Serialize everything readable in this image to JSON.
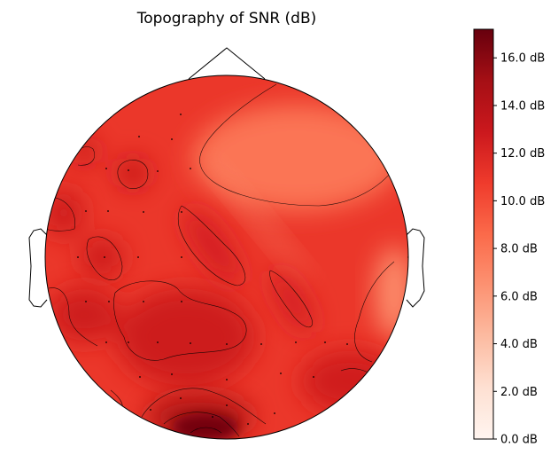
{
  "chart_data": {
    "type": "heatmap",
    "subtype": "eeg-topomap",
    "title": "Topography of SNR (dB)",
    "colormap": "Reds",
    "colorbar": {
      "min": 0.0,
      "max": 17.2,
      "ticks": [
        {
          "value": 0,
          "label": "0.0 dB"
        },
        {
          "value": 2,
          "label": "2.0 dB"
        },
        {
          "value": 4,
          "label": "4.0 dB"
        },
        {
          "value": 6,
          "label": "6.0 dB"
        },
        {
          "value": 8,
          "label": "8.0 dB"
        },
        {
          "value": 10,
          "label": "10.0 dB"
        },
        {
          "value": 12,
          "label": "12.0 dB"
        },
        {
          "value": 14,
          "label": "14.0 dB"
        },
        {
          "value": 16,
          "label": "16.0 dB"
        }
      ]
    },
    "contour_interval": 2,
    "base_level": 11.0,
    "regions": [
      {
        "name": "frontal-right-low",
        "value": 8.0
      },
      {
        "name": "temporal-right-low",
        "value": 6.8
      },
      {
        "name": "occipital-peak",
        "value": 16.8
      },
      {
        "name": "occipital-high",
        "value": 14.3
      },
      {
        "name": "frontal-left-high",
        "value": 13.2
      },
      {
        "name": "central-band",
        "value": 12.5
      },
      {
        "name": "parietal-right-high",
        "value": 12.6
      },
      {
        "name": "temporal-left-high",
        "value": 12.8
      },
      {
        "name": "posterior-left-high",
        "value": 12.8
      }
    ],
    "sensor_count": 42
  }
}
